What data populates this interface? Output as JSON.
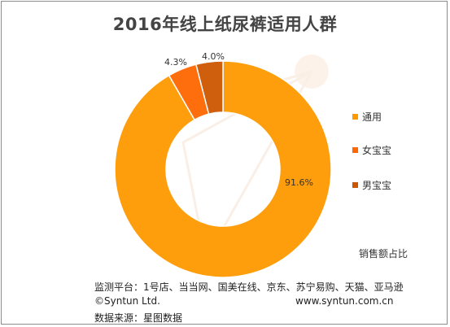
{
  "chart_data": {
    "type": "donut",
    "title": "2016年线上纸尿裤适用人群",
    "series": [
      {
        "name": "通用",
        "value": 91.6,
        "label": "91.6%",
        "color": "#ff9900"
      },
      {
        "name": "女宝宝",
        "value": 4.3,
        "label": "4.3%",
        "color": "#ff6600"
      },
      {
        "name": "男宝宝",
        "value": 4.0,
        "label": "4.0%",
        "color": "#cc5500"
      }
    ],
    "legend_position": "right",
    "caption": "销售额占比"
  },
  "footer": {
    "platforms": "监测平台：1号店、当当网、国美在线、京东、苏宁易购、天猫、亚马逊",
    "copyright": "©Syntun Ltd.",
    "website": "www.syntun.com.cn",
    "source": "数据来源：星图数据"
  }
}
